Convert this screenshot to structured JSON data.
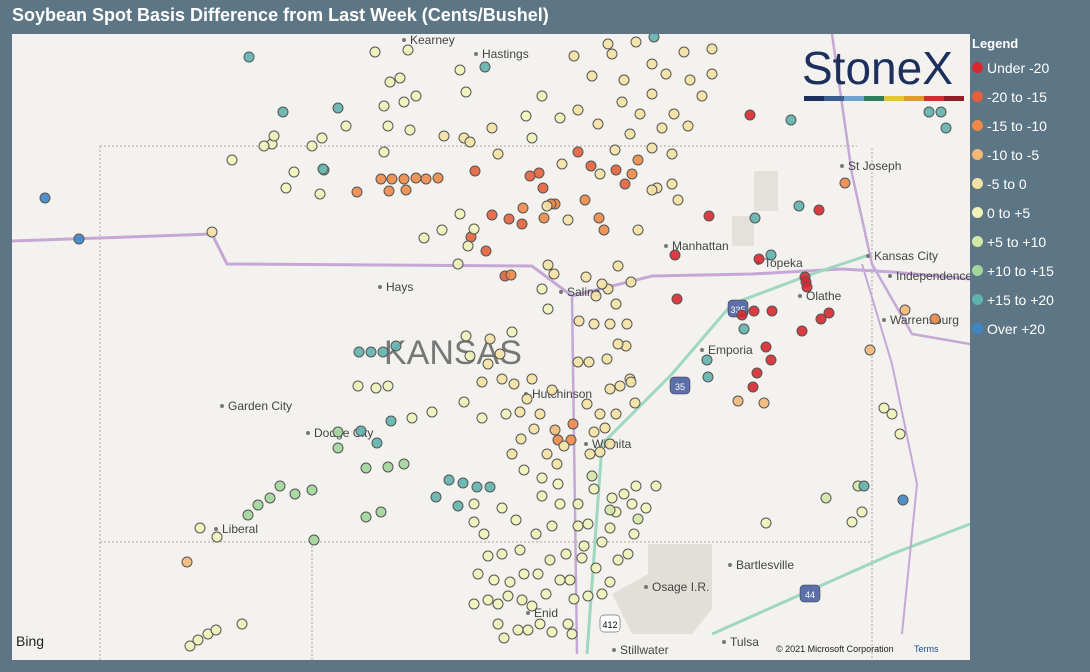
{
  "header": {
    "title": "Soybean Spot Basis Difference from Last Week (Cents/Bushel)"
  },
  "logo": "StoneX",
  "legend": {
    "title": "Legend",
    "items": [
      {
        "label": "Under -20",
        "color": "#d7282f"
      },
      {
        "label": "-20 to -15",
        "color": "#e4603b"
      },
      {
        "label": "-15 to -10",
        "color": "#ee8a48"
      },
      {
        "label": "-10 to -5",
        "color": "#f3b877"
      },
      {
        "label": "-5 to 0",
        "color": "#f4e2a3"
      },
      {
        "label": "0 to +5",
        "color": "#f0f3b8"
      },
      {
        "label": "+5 to +10",
        "color": "#d2e8a6"
      },
      {
        "label": "+10 to +15",
        "color": "#a2d59c"
      },
      {
        "label": "+15 to +20",
        "color": "#5fb2ad"
      },
      {
        "label": "Over +20",
        "color": "#3f86c5"
      }
    ]
  },
  "map": {
    "state_label": "KANSAS",
    "places": [
      "Kearney",
      "Hastings",
      "St Joseph",
      "Manhattan",
      "Kansas City",
      "Independence",
      "Hays",
      "Salina",
      "Topeka",
      "Olathe",
      "Warrensburg",
      "Emporia",
      "Garden City",
      "Dodge City",
      "Hutchinson",
      "Wichita",
      "Liberal",
      "Bartlesville",
      "Osage I.R.",
      "Enid",
      "Tulsa",
      "Stillwater"
    ],
    "shields": [
      "335",
      "35",
      "44",
      "412"
    ],
    "attribution": "© 2021 Microsoft Corporation",
    "terms": "Terms",
    "provider": "Bing"
  }
}
